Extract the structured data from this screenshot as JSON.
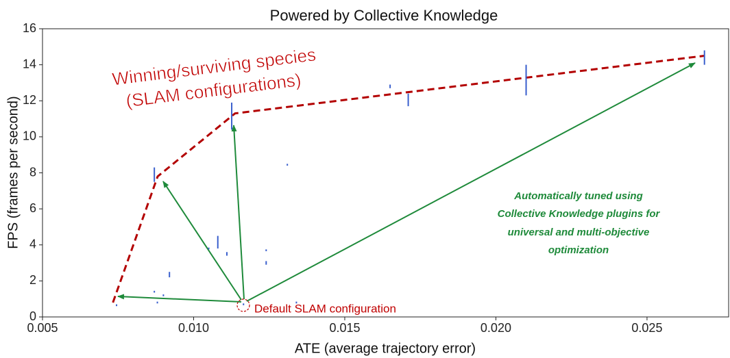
{
  "chart_data": {
    "type": "scatter",
    "title": "Powered by Collective Knowledge",
    "xlabel": "ATE (average trajectory error)",
    "ylabel": "FPS (frames per second)",
    "xlim": [
      0.005,
      0.0277
    ],
    "ylim": [
      0,
      16
    ],
    "xticks": [
      0.005,
      {
        "value": 0.01,
        "label": "0.010"
      },
      0.015,
      {
        "value": 0.02,
        "label": "0.020"
      },
      0.025
    ],
    "yticks": [
      0,
      2,
      4,
      6,
      8,
      10,
      12,
      14,
      16
    ],
    "points": {
      "color": "#3a5fcd",
      "x": [
        0.0269,
        0.021,
        0.0171,
        0.0165,
        0.01126,
        0.0087,
        0.0131,
        0.0108,
        0.0111,
        0.0124,
        0.0124,
        0.0092,
        0.0087,
        0.009,
        0.0088,
        0.01165,
        0.00745,
        0.0134,
        0.0105
      ],
      "values": [
        14.4,
        13.15,
        12.05,
        12.8,
        11.15,
        7.9,
        8.45,
        4.15,
        3.5,
        3.7,
        3.0,
        2.35,
        1.4,
        1.2,
        0.8,
        0.7,
        0.65,
        0.8,
        3.8
      ],
      "errors": [
        0.4,
        0.85,
        0.35,
        0.1,
        0.75,
        0.4,
        0.05,
        0.35,
        0.1,
        0.05,
        0.1,
        0.15,
        0.05,
        0.05,
        0.05,
        0.05,
        0.05,
        0.05,
        0.05
      ]
    },
    "frontier": {
      "color": "#b30000",
      "x": [
        0.00733,
        0.00881,
        0.01137,
        0.0269
      ],
      "values": [
        0.8,
        7.8,
        11.3,
        14.5
      ]
    },
    "annotations": {
      "winning": [
        "Winning/surviving species",
        "(SLAM configurations)"
      ],
      "tuned": [
        "Automatically tuned using",
        "Collective Knowledge plugins for",
        "universal and multi-objective",
        "optimization"
      ],
      "default": "Default SLAM configuration"
    }
  }
}
